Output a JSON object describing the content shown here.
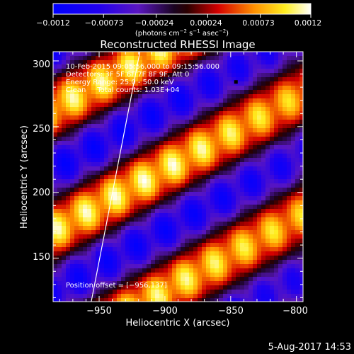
{
  "colorbar": {
    "tick_labels": [
      "−0.0012",
      "−0.00073",
      "−0.00024",
      "0.00024",
      "0.00073",
      "0.0012"
    ],
    "unit_prefix": "(photons cm",
    "unit_exp1": "−2",
    "unit_mid1": " s",
    "unit_exp2": "−1",
    "unit_mid2": " asec",
    "unit_exp3": "−2",
    "unit_suffix": ")",
    "range": [
      -0.0012,
      0.0012
    ]
  },
  "annotations": {
    "time_range": "10-Feb-2015 09:05:56.000 to 09:15:56.000",
    "detectors": "Detectors: 3F 5F 6F 7F 8F 9F, Att 0",
    "energy_range": "Energy Range: 25.0 - 50.0 keV",
    "clean": "Clean     Total counts: 1.03E+04",
    "position": "Position offset = [−956,137]"
  },
  "footer": {
    "date": "5-Aug-2017 14:53"
  },
  "chart_data": {
    "type": "heatmap",
    "title": "Reconstructed RHESSI Image",
    "xlabel": "Heliocentric X (arcsec)",
    "ylabel": "Heliocentric Y (arcsec)",
    "xlim": [
      -985,
      -795
    ],
    "ylim": [
      117,
      307
    ],
    "x_ticks": [
      -950,
      -900,
      -850,
      -800
    ],
    "x_tick_labels": [
      "−950",
      "−900",
      "−850",
      "−800"
    ],
    "y_ticks": [
      150,
      200,
      250,
      300
    ],
    "y_tick_labels": [
      "150",
      "200",
      "250",
      "300"
    ],
    "grid": false,
    "colormap": "blue-purple-black-red-yellow-white",
    "limb_line": [
      [
        -956,
        117
      ],
      [
        -919,
        307
      ]
    ],
    "marker": {
      "x": -846,
      "y": 284
    }
  }
}
